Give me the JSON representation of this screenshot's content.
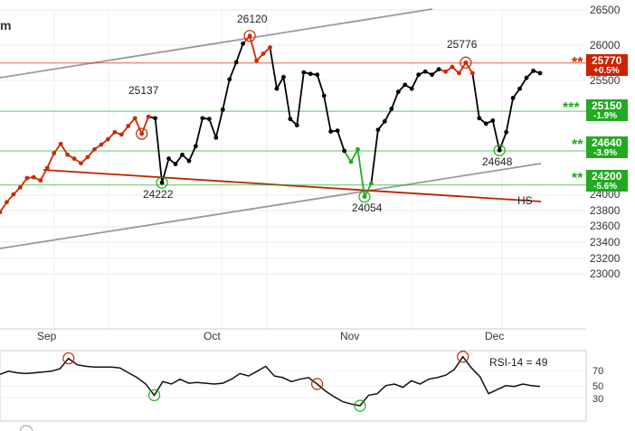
{
  "chart_data": {
    "type": "line",
    "title_fragment": "m",
    "price_axis": {
      "ticks": [
        "26500",
        "26000",
        "25500",
        "24000",
        "23800",
        "23600",
        "23400",
        "23200",
        "23000"
      ]
    },
    "months": [
      "Sep",
      "Oct",
      "Nov",
      "Dec"
    ],
    "series": [
      {
        "values": [
          23850,
          23980,
          24080,
          24170,
          24290,
          24300,
          24260,
          24420,
          24610,
          24730,
          24590,
          24540,
          24480,
          24560,
          24660,
          24720,
          24790,
          24880,
          24850,
          24960,
          25060,
          24860,
          25080,
          25060,
          24230,
          24540,
          24470,
          24590,
          24510,
          24700,
          25060,
          25050,
          24810,
          25170,
          25560,
          25780,
          26020,
          26120,
          25800,
          25890,
          25970,
          25440,
          25590,
          25050,
          24970,
          25650,
          25630,
          25620,
          25350,
          24890,
          24900,
          24640,
          24500,
          24660,
          24050,
          24220,
          24910,
          25020,
          25180,
          25400,
          25490,
          25440,
          25620,
          25660,
          25620,
          25690,
          25660,
          25720,
          25640,
          25776,
          25640,
          25060,
          24990,
          25030,
          24648,
          24880,
          25320,
          25440,
          25580,
          25670,
          25640
        ],
        "colors_by_segment": {
          "up": "#cc2a00",
          "down": "#000000",
          "bottom": "#22aa22"
        }
      }
    ],
    "annotations": [
      {
        "label": "26120"
      },
      {
        "label": "25776"
      },
      {
        "label": "25137"
      },
      {
        "label": "24222"
      },
      {
        "label": "24054"
      },
      {
        "label": "24648"
      },
      {
        "label": "HS"
      }
    ],
    "levels": [
      {
        "stars": "**",
        "value": "25770",
        "pct": "+0.5%",
        "color": "#cc2200"
      },
      {
        "stars": "***",
        "value": "25150",
        "pct": "-1.9%",
        "color": "#22aa22"
      },
      {
        "stars": "**",
        "value": "24640",
        "pct": "-3.9%",
        "color": "#22aa22"
      },
      {
        "stars": "**",
        "value": "24200",
        "pct": "-5.6%",
        "color": "#22aa22"
      }
    ],
    "rsi": {
      "label": "RSI-14 = 49",
      "ticks": [
        "70",
        "50",
        "30"
      ],
      "values": [
        64,
        68,
        66,
        65,
        66,
        67,
        68,
        71,
        84,
        76,
        74,
        73,
        73,
        73,
        72,
        66,
        60,
        52,
        38,
        55,
        52,
        58,
        53,
        54,
        53,
        52,
        53,
        58,
        65,
        62,
        68,
        74,
        62,
        60,
        55,
        58,
        60,
        52,
        43,
        36,
        30,
        27,
        25,
        38,
        40,
        50,
        52,
        48,
        56,
        52,
        58,
        60,
        63,
        70,
        86,
        72,
        61,
        40,
        45,
        50,
        49,
        52,
        50,
        49
      ]
    }
  }
}
